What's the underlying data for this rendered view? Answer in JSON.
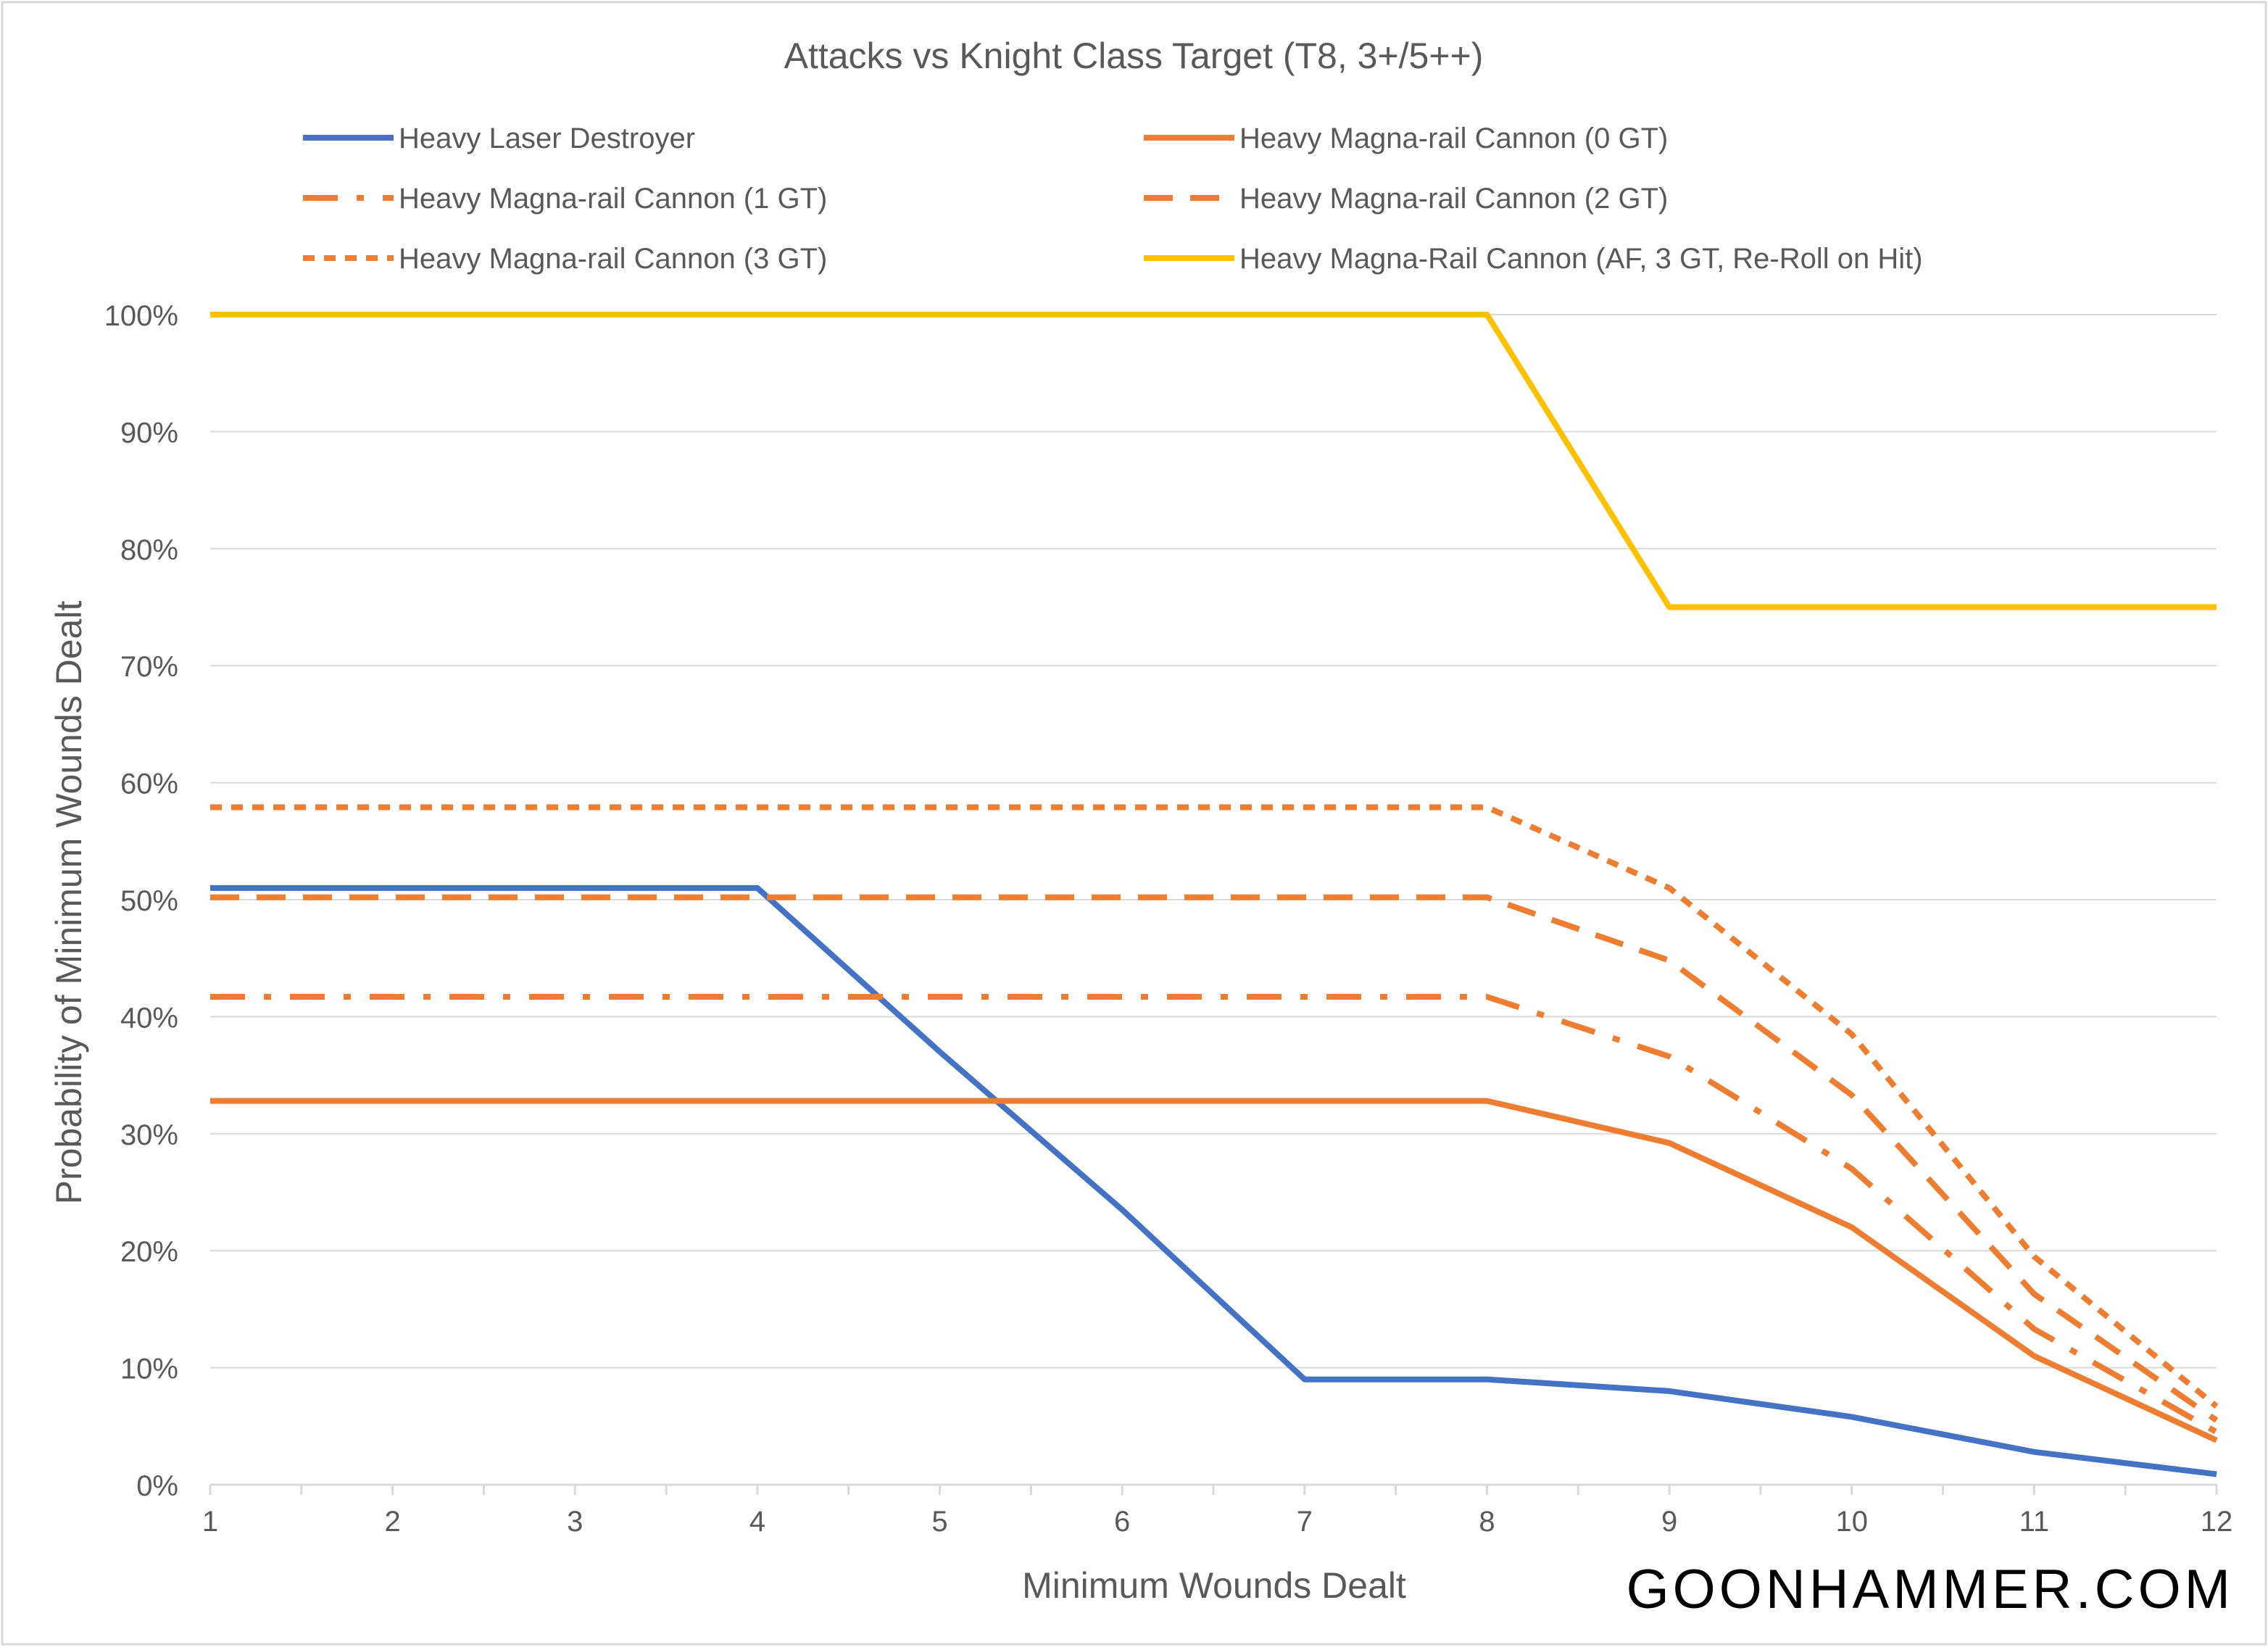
{
  "watermark": "GOONHAMMER.COM",
  "chart_data": {
    "type": "line",
    "title": "Attacks vs Knight Class Target (T8, 3+/5++)",
    "xlabel": "Minimum Wounds Dealt",
    "ylabel": "Probability of Minimum Wounds Dealt",
    "x": [
      1,
      2,
      3,
      4,
      5,
      6,
      7,
      8,
      9,
      10,
      11,
      12
    ],
    "xticks": [
      "1",
      "2",
      "3",
      "4",
      "5",
      "6",
      "7",
      "8",
      "9",
      "10",
      "11",
      "12"
    ],
    "ylim": [
      0,
      100
    ],
    "yticks": [
      "0%",
      "10%",
      "20%",
      "30%",
      "40%",
      "50%",
      "60%",
      "70%",
      "80%",
      "90%",
      "100%"
    ],
    "grid": "horizontal",
    "legend_position": "top",
    "series": [
      {
        "name": "Heavy Laser Destroyer",
        "color": "#4472C4",
        "dash": "solid",
        "values": [
          51,
          51,
          51,
          51,
          37,
          23.5,
          9,
          9,
          8,
          5.8,
          2.8,
          0.9
        ]
      },
      {
        "name": "Heavy Magna-rail Cannon (0 GT)",
        "color": "#ED7D31",
        "dash": "solid",
        "values": [
          32.8,
          32.8,
          32.8,
          32.8,
          32.8,
          32.8,
          32.8,
          32.8,
          29.2,
          22,
          11,
          3.8
        ]
      },
      {
        "name": "Heavy Magna-rail Cannon (1 GT)",
        "color": "#ED7D31",
        "dash": "long-dash-dot",
        "values": [
          41.7,
          41.7,
          41.7,
          41.7,
          41.7,
          41.7,
          41.7,
          41.7,
          36.6,
          27,
          13.3,
          4.5
        ]
      },
      {
        "name": "Heavy Magna-rail Cannon (2 GT)",
        "color": "#ED7D31",
        "dash": "dash",
        "values": [
          50.2,
          50.2,
          50.2,
          50.2,
          50.2,
          50.2,
          50.2,
          50.2,
          44.8,
          33.3,
          16.3,
          5.5
        ]
      },
      {
        "name": "Heavy Magna-rail Cannon (3 GT)",
        "color": "#ED7D31",
        "dash": "short-dash",
        "values": [
          57.9,
          57.9,
          57.9,
          57.9,
          57.9,
          57.9,
          57.9,
          57.9,
          51,
          38.5,
          19.5,
          6.7
        ]
      },
      {
        "name": "Heavy Magna-Rail Cannon (AF, 3 GT, Re-Roll on Hit)",
        "color": "#FFC000",
        "dash": "solid",
        "values": [
          100,
          100,
          100,
          100,
          100,
          100,
          100,
          100,
          75,
          75,
          75,
          75
        ]
      }
    ]
  }
}
